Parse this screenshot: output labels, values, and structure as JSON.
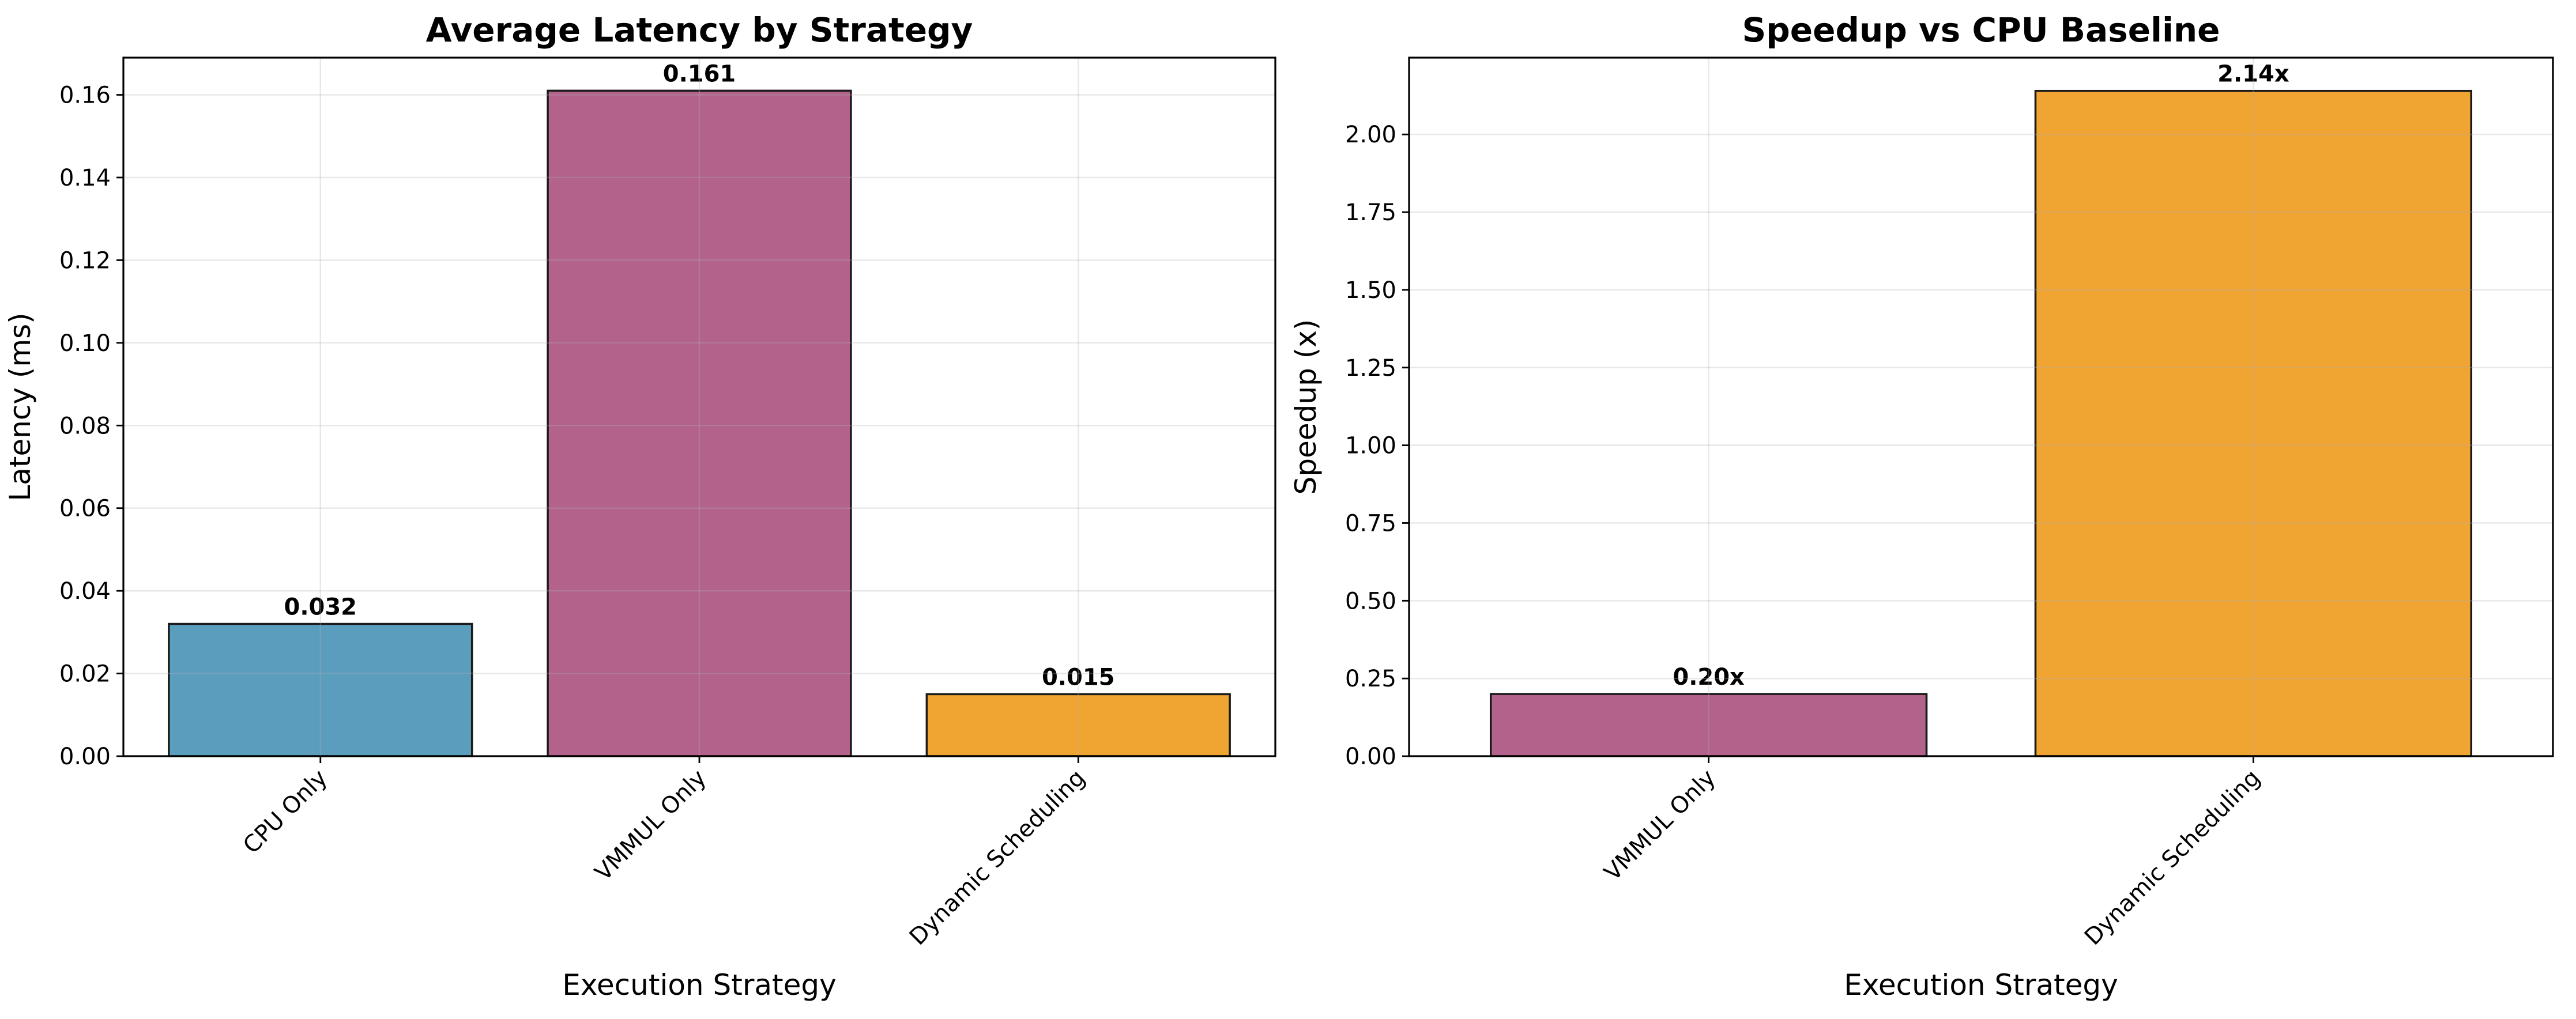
{
  "chart_data": [
    {
      "type": "bar",
      "title": "Average Latency by Strategy",
      "xlabel": "Execution Strategy",
      "ylabel": "Latency (ms)",
      "categories": [
        "CPU Only",
        "VMMUL Only",
        "Dynamic Scheduling"
      ],
      "values": [
        0.032,
        0.161,
        0.015
      ],
      "value_labels": [
        "0.032",
        "0.161",
        "0.015"
      ],
      "colors": [
        "#5a9dbd",
        "#b3628b",
        "#f0a432"
      ],
      "ylim": [
        0,
        0.169
      ],
      "yticks": [
        "0.00",
        "0.02",
        "0.04",
        "0.06",
        "0.08",
        "0.10",
        "0.12",
        "0.14",
        "0.16"
      ],
      "grid": true
    },
    {
      "type": "bar",
      "title": "Speedup vs CPU Baseline",
      "xlabel": "Execution Strategy",
      "ylabel": "Speedup (x)",
      "categories": [
        "VMMUL Only",
        "Dynamic Scheduling"
      ],
      "values": [
        0.2,
        2.14
      ],
      "value_labels": [
        "0.20x",
        "2.14x"
      ],
      "colors": [
        "#b3628b",
        "#f0a432"
      ],
      "ylim": [
        0,
        2.247
      ],
      "yticks": [
        "0.00",
        "0.25",
        "0.50",
        "0.75",
        "1.00",
        "1.25",
        "1.50",
        "1.75",
        "2.00"
      ],
      "grid": true
    }
  ]
}
